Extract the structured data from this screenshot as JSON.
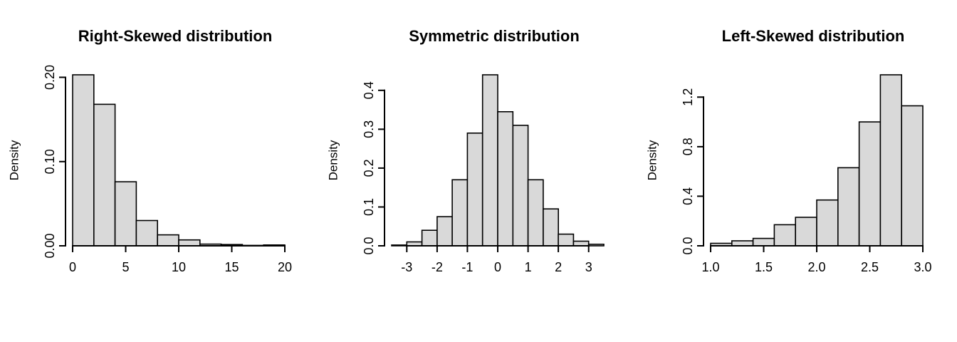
{
  "style": {
    "background": "#ffffff",
    "bar_fill": "#d9d9d9",
    "bar_stroke": "#000000",
    "axis_color": "#000000",
    "text_color": "#000000"
  },
  "chart_data": [
    {
      "type": "bar",
      "title": "Right-Skewed distribution",
      "ylabel": "Density",
      "xlabel": "",
      "breaks": [
        0,
        2,
        4,
        6,
        8,
        10,
        12,
        14,
        16,
        18,
        20
      ],
      "densities": [
        0.203,
        0.168,
        0.076,
        0.03,
        0.013,
        0.007,
        0.002,
        0.0015,
        0.0005,
        0.001
      ],
      "xlim": [
        0,
        20
      ],
      "ylim": [
        0,
        0.203
      ],
      "xticks": [
        0,
        5,
        10,
        15,
        20
      ],
      "xtick_labels": [
        "0",
        "5",
        "10",
        "15",
        "20"
      ],
      "yticks": [
        0,
        0.1,
        0.2
      ],
      "ytick_labels": [
        "0.00",
        "0.10",
        "0.20"
      ],
      "grid": false,
      "legend": "none"
    },
    {
      "type": "bar",
      "title": "Symmetric distribution",
      "ylabel": "Density",
      "xlabel": "",
      "breaks": [
        -3.5,
        -3,
        -2.5,
        -2,
        -1.5,
        -1,
        -0.5,
        0,
        0.5,
        1,
        1.5,
        2,
        2.5,
        3,
        3.5
      ],
      "densities": [
        0.002,
        0.01,
        0.04,
        0.075,
        0.17,
        0.29,
        0.44,
        0.345,
        0.31,
        0.17,
        0.095,
        0.03,
        0.012,
        0.004
      ],
      "xlim": [
        -3.5,
        3.5
      ],
      "ylim": [
        0,
        0.44
      ],
      "xticks": [
        -3,
        -2,
        -1,
        0,
        1,
        2,
        3
      ],
      "xtick_labels": [
        "-3",
        "-2",
        "-1",
        "0",
        "1",
        "2",
        "3"
      ],
      "yticks": [
        0,
        0.1,
        0.2,
        0.3,
        0.4
      ],
      "ytick_labels": [
        "0.0",
        "0.1",
        "0.2",
        "0.3",
        "0.4"
      ],
      "grid": false,
      "legend": "none"
    },
    {
      "type": "bar",
      "title": "Left-Skewed distribution",
      "ylabel": "Density",
      "xlabel": "",
      "breaks": [
        1.0,
        1.2,
        1.4,
        1.6,
        1.8,
        2.0,
        2.2,
        2.4,
        2.6,
        2.8,
        3.0
      ],
      "densities": [
        0.02,
        0.04,
        0.06,
        0.17,
        0.23,
        0.37,
        0.63,
        1.0,
        1.38,
        1.13
      ],
      "xlim": [
        1.0,
        3.0
      ],
      "ylim": [
        0,
        1.38
      ],
      "xticks": [
        1.0,
        1.5,
        2.0,
        2.5,
        3.0
      ],
      "xtick_labels": [
        "1.0",
        "1.5",
        "2.0",
        "2.5",
        "3.0"
      ],
      "yticks": [
        0,
        0.4,
        0.8,
        1.2
      ],
      "ytick_labels": [
        "0.0",
        "0.4",
        "0.8",
        "1.2"
      ],
      "grid": false,
      "legend": "none"
    }
  ]
}
